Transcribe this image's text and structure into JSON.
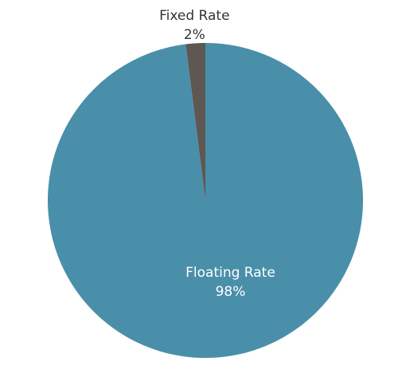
{
  "chart_data": {
    "type": "pie",
    "categories": [
      "Fixed Rate",
      "Floating Rate"
    ],
    "values": [
      2,
      98
    ],
    "value_labels": [
      "2%",
      "98%"
    ],
    "colors": [
      "#5f5753",
      "#4a8fa9"
    ]
  }
}
